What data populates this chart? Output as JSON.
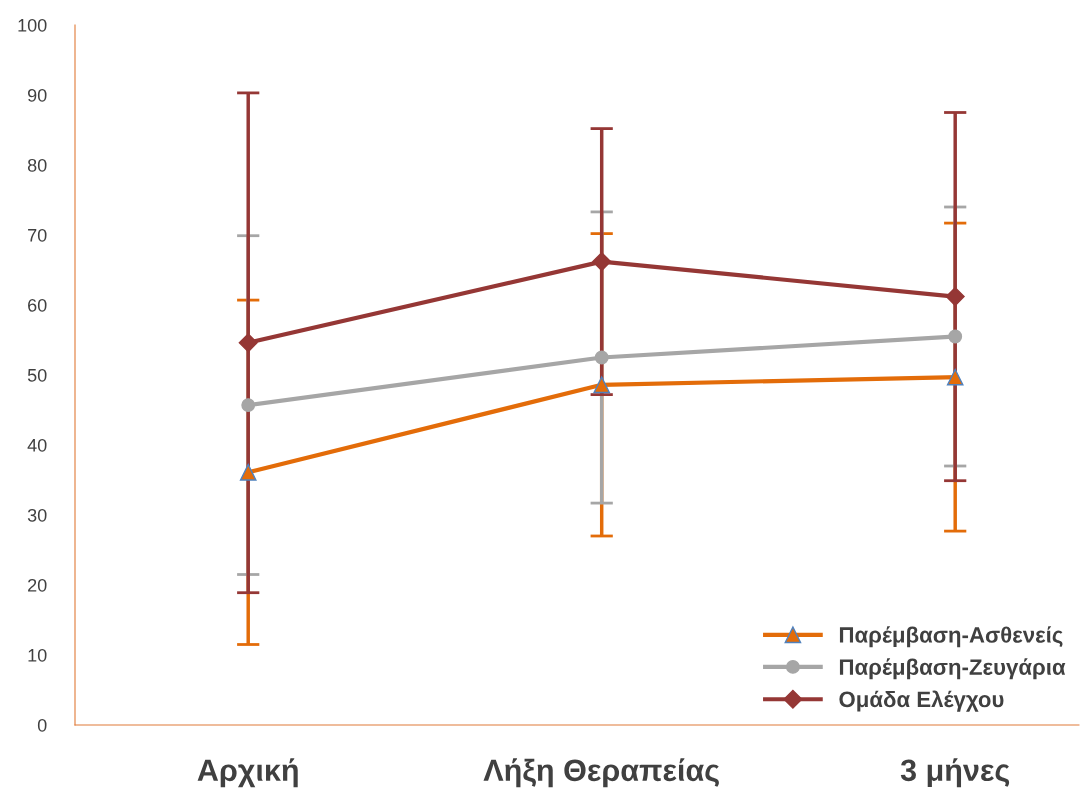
{
  "chart_data": {
    "type": "line",
    "categories": [
      "Αρχική",
      "Λήξη Θεραπείας",
      "3 μήνες"
    ],
    "series": [
      {
        "name": "Παρέμβαση-Ασθενείς",
        "color": "#e36c09",
        "marker": "triangle",
        "values": [
          36.1,
          48.6,
          49.7
        ],
        "errors": [
          24.6,
          21.6,
          22.0
        ]
      },
      {
        "name": "Παρέμβαση-Ζευγάρια",
        "color": "#a6a6a6",
        "marker": "circle",
        "values": [
          45.7,
          52.5,
          55.5
        ],
        "errors": [
          24.2,
          20.8,
          18.5
        ]
      },
      {
        "name": "Ομάδα Ελέγχου",
        "color": "#953735",
        "marker": "diamond",
        "values": [
          54.6,
          66.2,
          61.2
        ],
        "errors": [
          35.7,
          19.0,
          26.3
        ]
      }
    ],
    "ylim": [
      0,
      100
    ],
    "yticks": [
      0,
      10,
      20,
      30,
      40,
      50,
      60,
      70,
      80,
      90,
      100
    ],
    "grid": false,
    "legend": "bottom right"
  }
}
